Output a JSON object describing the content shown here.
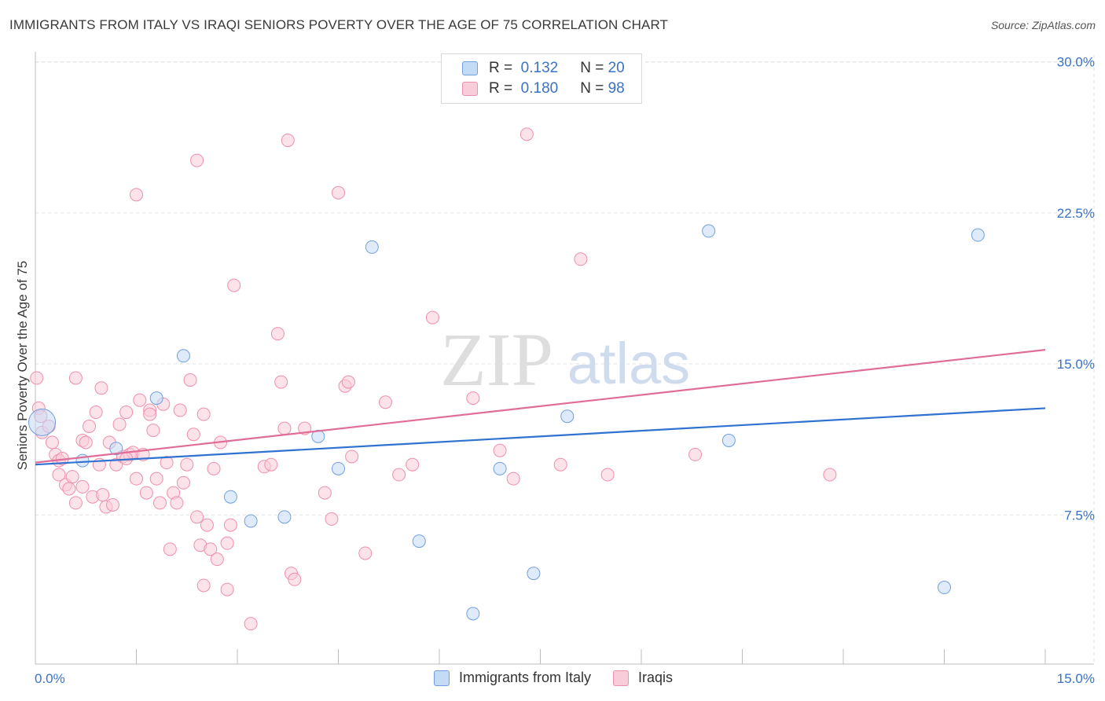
{
  "title": "IMMIGRANTS FROM ITALY VS IRAQI SENIORS POVERTY OVER THE AGE OF 75 CORRELATION CHART",
  "source": "Source: ZipAtlas.com",
  "watermark": {
    "zip": "ZIP",
    "atlas": "atlas"
  },
  "legend": {
    "r_label": "R =",
    "n_label": "N =",
    "rows": [
      {
        "r": "0.132",
        "n": "20",
        "color": "#a9c8f0"
      },
      {
        "r": "0.180",
        "n": "98",
        "color": "#f7b6c8"
      }
    ]
  },
  "bottom_legend": [
    "Immigrants from Italy",
    "Iraqis"
  ],
  "chart_data": {
    "type": "scatter",
    "ylabel": "Seniors Poverty Over the Age of 75",
    "xlim": [
      0,
      15
    ],
    "ylim": [
      0,
      31
    ],
    "x_tick_labels": {
      "min": "0.0%",
      "max": "15.0%"
    },
    "y_ticks": [
      {
        "value": 7.5,
        "label": "7.5%"
      },
      {
        "value": 15,
        "label": "15.0%"
      },
      {
        "value": 22.5,
        "label": "22.5%"
      },
      {
        "value": 30,
        "label": "30.0%"
      }
    ],
    "grid": true,
    "series": [
      {
        "name": "Immigrants from Italy",
        "color": "#6f9fe0",
        "fill": "#c4dbf6",
        "line_color": "#2f72cf",
        "trend": {
          "x": [
            0,
            15
          ],
          "y": [
            10.0,
            12.8
          ]
        },
        "points": [
          [
            0.1,
            12.1
          ],
          [
            0.7,
            10.2
          ],
          [
            1.2,
            10.8
          ],
          [
            1.8,
            13.3
          ],
          [
            2.2,
            15.4
          ],
          [
            2.9,
            8.4
          ],
          [
            3.2,
            7.2
          ],
          [
            3.7,
            7.4
          ],
          [
            4.2,
            11.4
          ],
          [
            4.5,
            9.8
          ],
          [
            5.0,
            20.8
          ],
          [
            5.7,
            6.2
          ],
          [
            6.5,
            2.6
          ],
          [
            6.9,
            9.8
          ],
          [
            7.4,
            4.6
          ],
          [
            7.9,
            12.4
          ],
          [
            10.0,
            21.6
          ],
          [
            10.3,
            11.2
          ],
          [
            13.5,
            3.9
          ],
          [
            14.0,
            21.4
          ]
        ]
      },
      {
        "name": "Iraqis",
        "color": "#ee8fab",
        "fill": "#f9ccd9",
        "line_color": "#e06d98",
        "trend": {
          "x": [
            0,
            15
          ],
          "y": [
            10.1,
            15.7
          ]
        },
        "points": [
          [
            0.02,
            14.3
          ],
          [
            0.05,
            12.8
          ],
          [
            0.08,
            12.4
          ],
          [
            0.1,
            11.6
          ],
          [
            0.2,
            11.9
          ],
          [
            0.25,
            11.1
          ],
          [
            0.3,
            10.5
          ],
          [
            0.35,
            9.5
          ],
          [
            0.35,
            10.2
          ],
          [
            0.4,
            10.3
          ],
          [
            0.45,
            9.0
          ],
          [
            0.5,
            8.8
          ],
          [
            0.55,
            9.4
          ],
          [
            0.6,
            8.1
          ],
          [
            0.6,
            14.3
          ],
          [
            0.7,
            8.9
          ],
          [
            0.7,
            11.2
          ],
          [
            0.75,
            11.1
          ],
          [
            0.8,
            11.9
          ],
          [
            0.85,
            8.4
          ],
          [
            0.9,
            12.6
          ],
          [
            0.95,
            10.0
          ],
          [
            0.98,
            13.8
          ],
          [
            1.0,
            8.5
          ],
          [
            1.05,
            7.9
          ],
          [
            1.1,
            11.1
          ],
          [
            1.15,
            8.0
          ],
          [
            1.2,
            10.0
          ],
          [
            1.25,
            12.0
          ],
          [
            1.3,
            10.4
          ],
          [
            1.35,
            12.6
          ],
          [
            1.4,
            10.5
          ],
          [
            1.45,
            10.6
          ],
          [
            1.5,
            9.3
          ],
          [
            1.55,
            13.2
          ],
          [
            1.6,
            10.5
          ],
          [
            1.65,
            8.6
          ],
          [
            1.7,
            12.7
          ],
          [
            1.7,
            12.5
          ],
          [
            1.75,
            11.7
          ],
          [
            1.8,
            9.3
          ],
          [
            1.85,
            8.1
          ],
          [
            1.9,
            13.0
          ],
          [
            1.95,
            10.1
          ],
          [
            2.0,
            5.8
          ],
          [
            2.05,
            8.6
          ],
          [
            2.1,
            8.1
          ],
          [
            2.15,
            12.7
          ],
          [
            2.2,
            9.1
          ],
          [
            2.25,
            10.0
          ],
          [
            2.3,
            14.2
          ],
          [
            2.35,
            11.5
          ],
          [
            2.4,
            7.4
          ],
          [
            2.45,
            6.0
          ],
          [
            2.5,
            12.5
          ],
          [
            2.55,
            7.0
          ],
          [
            2.6,
            5.8
          ],
          [
            2.65,
            9.8
          ],
          [
            2.7,
            5.3
          ],
          [
            2.75,
            11.1
          ],
          [
            2.85,
            3.8
          ],
          [
            2.85,
            6.1
          ],
          [
            2.9,
            7.0
          ],
          [
            2.95,
            18.9
          ],
          [
            2.5,
            4.0
          ],
          [
            2.4,
            25.1
          ],
          [
            1.5,
            23.4
          ],
          [
            3.2,
            2.1
          ],
          [
            3.4,
            9.9
          ],
          [
            3.5,
            10.0
          ],
          [
            3.6,
            16.5
          ],
          [
            3.65,
            14.1
          ],
          [
            3.7,
            11.8
          ],
          [
            3.75,
            26.1
          ],
          [
            3.8,
            4.6
          ],
          [
            3.85,
            4.3
          ],
          [
            4.0,
            11.8
          ],
          [
            4.3,
            8.6
          ],
          [
            4.4,
            7.3
          ],
          [
            4.6,
            13.9
          ],
          [
            4.65,
            14.1
          ],
          [
            4.7,
            10.4
          ],
          [
            4.9,
            5.6
          ],
          [
            4.5,
            23.5
          ],
          [
            5.2,
            13.1
          ],
          [
            5.4,
            9.5
          ],
          [
            5.6,
            10.0
          ],
          [
            5.9,
            17.3
          ],
          [
            6.5,
            13.3
          ],
          [
            6.9,
            10.7
          ],
          [
            7.1,
            9.3
          ],
          [
            7.3,
            26.4
          ],
          [
            7.8,
            10.0
          ],
          [
            8.1,
            20.2
          ],
          [
            8.5,
            9.5
          ],
          [
            9.8,
            10.5
          ],
          [
            11.8,
            9.5
          ],
          [
            1.35,
            10.3
          ]
        ]
      }
    ]
  }
}
